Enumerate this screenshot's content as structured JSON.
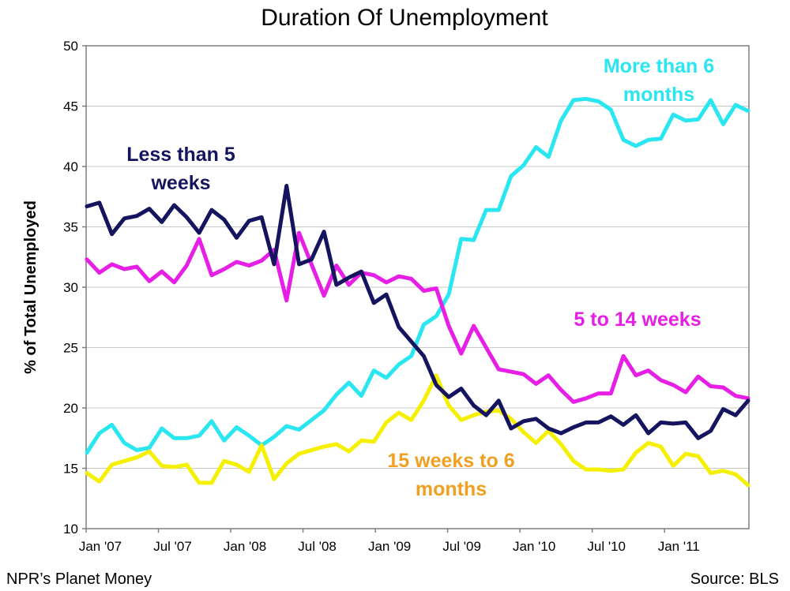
{
  "chart_data": {
    "type": "line",
    "title": "Duration Of Unemployment",
    "xlabel": "",
    "ylabel": "% of Total Unemployed",
    "ylim": [
      10,
      50
    ],
    "yticks": [
      10,
      15,
      20,
      25,
      30,
      35,
      40,
      45,
      50
    ],
    "grid": true,
    "x_months": 55,
    "x_ticks": [
      {
        "label": "Jan '07",
        "month": 0
      },
      {
        "label": "Jul '07",
        "month": 6
      },
      {
        "label": "Jan '08",
        "month": 12
      },
      {
        "label": "Jul '08",
        "month": 18
      },
      {
        "label": "Jan '09",
        "month": 24
      },
      {
        "label": "Jul '09",
        "month": 30
      },
      {
        "label": "Jan '10",
        "month": 36
      },
      {
        "label": "Jul '10",
        "month": 42
      },
      {
        "label": "Jan '11",
        "month": 48
      }
    ],
    "series": [
      {
        "name": "Less than 5 weeks",
        "label_lines": [
          "Less than 5",
          "weeks"
        ],
        "color": "#15155f",
        "values": [
          36.7,
          37.0,
          34.4,
          35.7,
          35.9,
          36.5,
          35.4,
          36.8,
          35.8,
          34.5,
          36.4,
          35.6,
          34.1,
          35.5,
          35.8,
          31.9,
          38.4,
          31.9,
          32.3,
          34.6,
          30.2,
          30.8,
          31.3,
          28.7,
          29.4,
          26.7,
          25.5,
          24.3,
          21.9,
          20.9,
          21.6,
          20.2,
          19.4,
          20.6,
          18.3,
          18.9,
          19.1,
          18.3,
          17.9,
          18.4,
          18.8,
          18.8,
          19.3,
          18.6,
          19.4,
          17.9,
          18.8,
          18.7,
          18.8,
          17.5,
          18.1,
          19.9,
          19.4,
          20.6
        ]
      },
      {
        "name": "5 to 14 weeks",
        "label_lines": [
          "5 to 14 weeks"
        ],
        "color": "#e61ee6",
        "values": [
          32.3,
          31.2,
          31.9,
          31.5,
          31.7,
          30.5,
          31.3,
          30.4,
          31.8,
          34.0,
          31.0,
          31.5,
          32.1,
          31.8,
          32.2,
          33.1,
          28.9,
          34.5,
          31.9,
          29.3,
          31.8,
          30.2,
          31.2,
          31.0,
          30.4,
          30.9,
          30.7,
          29.7,
          29.9,
          26.8,
          24.5,
          26.8,
          25.0,
          23.2,
          23.0,
          22.8,
          22.0,
          22.7,
          21.5,
          20.5,
          20.8,
          21.2,
          21.2,
          24.3,
          22.7,
          23.1,
          22.3,
          21.9,
          21.3,
          22.6,
          21.8,
          21.7,
          21.0,
          20.8
        ]
      },
      {
        "name": "15 weeks to 6 months",
        "label_lines": [
          "15 weeks to 6",
          "months"
        ],
        "color": "#f5f000",
        "label_color": "#f0a020",
        "values": [
          14.6,
          13.9,
          15.3,
          15.6,
          15.9,
          16.4,
          15.2,
          15.1,
          15.3,
          13.8,
          13.8,
          15.6,
          15.3,
          14.7,
          16.9,
          14.1,
          15.4,
          16.2,
          16.5,
          16.8,
          17.0,
          16.4,
          17.3,
          17.2,
          18.8,
          19.6,
          19.0,
          20.6,
          22.7,
          20.2,
          19.0,
          19.4,
          19.7,
          19.8,
          19.1,
          18.0,
          17.1,
          18.1,
          17.0,
          15.6,
          14.9,
          14.9,
          14.8,
          14.9,
          16.3,
          17.1,
          16.8,
          15.2,
          16.2,
          16.0,
          14.6,
          14.8,
          14.5,
          13.6
        ]
      },
      {
        "name": "More than 6 months",
        "label_lines": [
          "More than 6",
          "months"
        ],
        "color": "#29e6f0",
        "values": [
          16.3,
          17.9,
          18.6,
          17.1,
          16.5,
          16.7,
          18.3,
          17.5,
          17.5,
          17.7,
          18.9,
          17.3,
          18.4,
          17.7,
          16.9,
          17.6,
          18.5,
          18.2,
          19.0,
          19.8,
          21.1,
          22.1,
          21.0,
          23.1,
          22.5,
          23.6,
          24.3,
          26.9,
          27.6,
          29.4,
          34.0,
          33.9,
          36.4,
          36.4,
          39.2,
          40.1,
          41.6,
          40.8,
          43.8,
          45.5,
          45.6,
          45.4,
          44.7,
          42.2,
          41.7,
          42.2,
          42.3,
          44.3,
          43.8,
          43.9,
          45.5,
          43.5,
          45.1,
          44.6
        ]
      }
    ],
    "draw_order": [
      "More than 6 months",
      "15 weeks to 6 months",
      "5 to 14 weeks",
      "Less than 5 weeks"
    ]
  },
  "footer": {
    "source_left": "NPR’s Planet Money",
    "source_right": "Source: BLS"
  }
}
